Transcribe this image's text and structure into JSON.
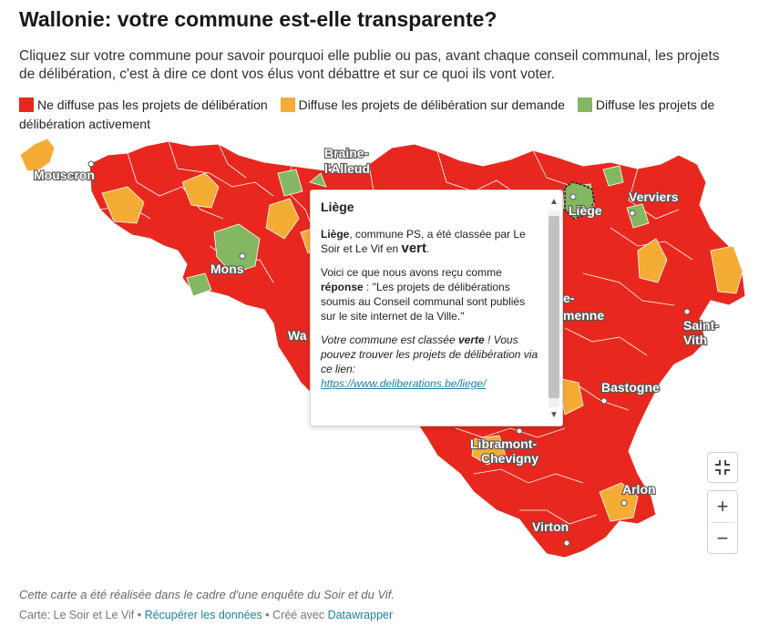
{
  "title": "Wallonie: votre commune est-elle transparente?",
  "description": "Cliquez sur votre commune pour savoir pourquoi elle publie ou pas, avant chaque conseil communal, les projets de délibération, c'est à dire ce dont vos élus vont débattre et sur ce quoi ils vont voter.",
  "legend": [
    {
      "label": "Ne diffuse pas les projets de délibération",
      "color": "#e8281e"
    },
    {
      "label": "Diffuse les projets de délibération sur demande",
      "color": "#f5ac35"
    },
    {
      "label": "Diffuse les projets de délibération activement",
      "color": "#84b761"
    }
  ],
  "cities": {
    "mouscron": "Mouscron",
    "braine_1": "Braine-",
    "braine_2": "l'Alleud",
    "liege": "Liège",
    "verviers": "Verviers",
    "mons": "Mons",
    "wa": "Wa",
    "marche_1": "e-",
    "marche_2": "menne",
    "saintvith_1": "Saint-",
    "saintvith_2": "Vith",
    "bastogne": "Bastogne",
    "libramont_1": "Libramont-",
    "libramont_2": "Chevigny",
    "arlon": "Arlon",
    "virton": "Virton"
  },
  "tooltip": {
    "title": "Liège",
    "p1_name": "Liège",
    "p1_text": ", commune PS, a été classée par Le Soir et Le Vif en ",
    "p1_class": "vert",
    "p1_end": ".",
    "p2_text": "Voici ce que nous avons reçu comme ",
    "p2_label": "réponse",
    "p2_quote": " : \"Les projets de délibérations soumis au Conseil communal sont publiés sur le site internet de la Ville.\"",
    "p3_a": "Votre commune est classée ",
    "p3_b": "verte",
    "p3_c": " ! Vous pouvez trouver les projets de délibération via ce lien:",
    "link": "https://www.deliberations.be/liege/"
  },
  "controls": {
    "fullscreen_icon": "fullscreen-exit-icon",
    "zoom_in": "+",
    "zoom_out": "−",
    "scroll_up": "▲",
    "scroll_down": "▼"
  },
  "note": "Cette carte a été réalisée dans le cadre d'une enquête du Soir et du Vif.",
  "footer": {
    "source": "Carte: Le Soir et Le Vif",
    "sep1": " • ",
    "data_link": "Récupérer les données",
    "sep2": " • Créé avec ",
    "tool_link": "Datawrapper"
  }
}
